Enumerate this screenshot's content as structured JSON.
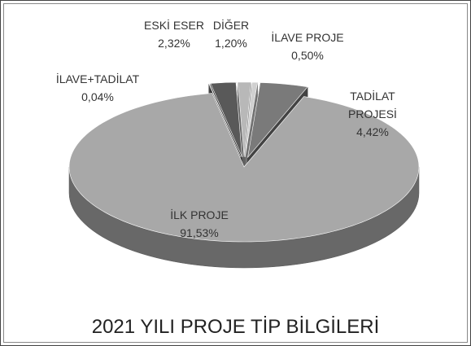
{
  "chart_data": {
    "type": "pie",
    "title": "2021 YILI PROJE TİP BİLGİLERİ",
    "categories": [
      "İLK PROJE",
      "İLAVE+TADİLAT",
      "ESKİ ESER",
      "DİĞER",
      "İLAVE PROJE",
      "TADİLAT PROJESİ"
    ],
    "values": [
      91.53,
      0.04,
      2.32,
      1.2,
      0.5,
      4.42
    ],
    "value_labels": [
      "91,53%",
      "0,04%",
      "2,32%",
      "1,20%",
      "0,50%",
      "4,42%"
    ],
    "colors": [
      "#a8a8a8",
      "#8c8c8c",
      "#595959",
      "#b8b8b8",
      "#d0d0d0",
      "#7a7a7a"
    ]
  }
}
